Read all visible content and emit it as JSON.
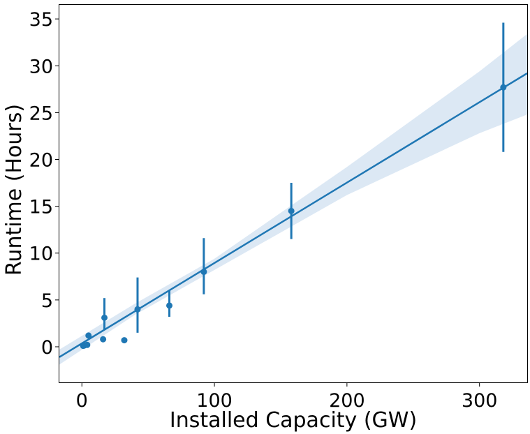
{
  "chart_data": {
    "type": "scatter",
    "title": "",
    "xlabel": "Installed Capacity (GW)",
    "ylabel": "Runtime (Hours)",
    "xlim": [
      -17,
      336
    ],
    "ylim": [
      -3.8,
      36.5
    ],
    "xticks": [
      0,
      100,
      200,
      300
    ],
    "yticks": [
      0,
      5,
      10,
      15,
      20,
      25,
      30,
      35
    ],
    "grid": false,
    "legend": "none",
    "color": "#1f77b4",
    "band_color": "#dce8f4",
    "points": [
      {
        "x": 1,
        "y": 0.1,
        "err_low": null,
        "err_high": null
      },
      {
        "x": 2,
        "y": 0.15,
        "err_low": null,
        "err_high": null
      },
      {
        "x": 4,
        "y": 0.2,
        "err_low": null,
        "err_high": null
      },
      {
        "x": 5,
        "y": 1.2,
        "err_low": null,
        "err_high": null
      },
      {
        "x": 16,
        "y": 0.8,
        "err_low": null,
        "err_high": null
      },
      {
        "x": 17,
        "y": 3.1,
        "err_low": 1.8,
        "err_high": 5.2
      },
      {
        "x": 32,
        "y": 0.7,
        "err_low": null,
        "err_high": null
      },
      {
        "x": 42,
        "y": 4.0,
        "err_low": 1.5,
        "err_high": 7.4
      },
      {
        "x": 66,
        "y": 4.4,
        "err_low": 3.2,
        "err_high": 6.0
      },
      {
        "x": 92,
        "y": 8.0,
        "err_low": 5.6,
        "err_high": 11.6
      },
      {
        "x": 158,
        "y": 14.5,
        "err_low": 11.5,
        "err_high": 17.5
      },
      {
        "x": 318,
        "y": 27.7,
        "err_low": 20.8,
        "err_high": 34.6
      }
    ],
    "regression": {
      "x_start": -17,
      "y_start": -1.1,
      "x_end": 336,
      "y_end": 29.2
    },
    "confidence_band": [
      {
        "x": -17,
        "lower": -1.9,
        "upper": -0.3
      },
      {
        "x": 40,
        "lower": 3.4,
        "upper": 4.6
      },
      {
        "x": 100,
        "lower": 8.2,
        "upper": 9.4
      },
      {
        "x": 200,
        "lower": 16.2,
        "upper": 19.2
      },
      {
        "x": 300,
        "lower": 22.8,
        "upper": 29.4
      },
      {
        "x": 336,
        "lower": 24.8,
        "upper": 33.4
      }
    ]
  }
}
